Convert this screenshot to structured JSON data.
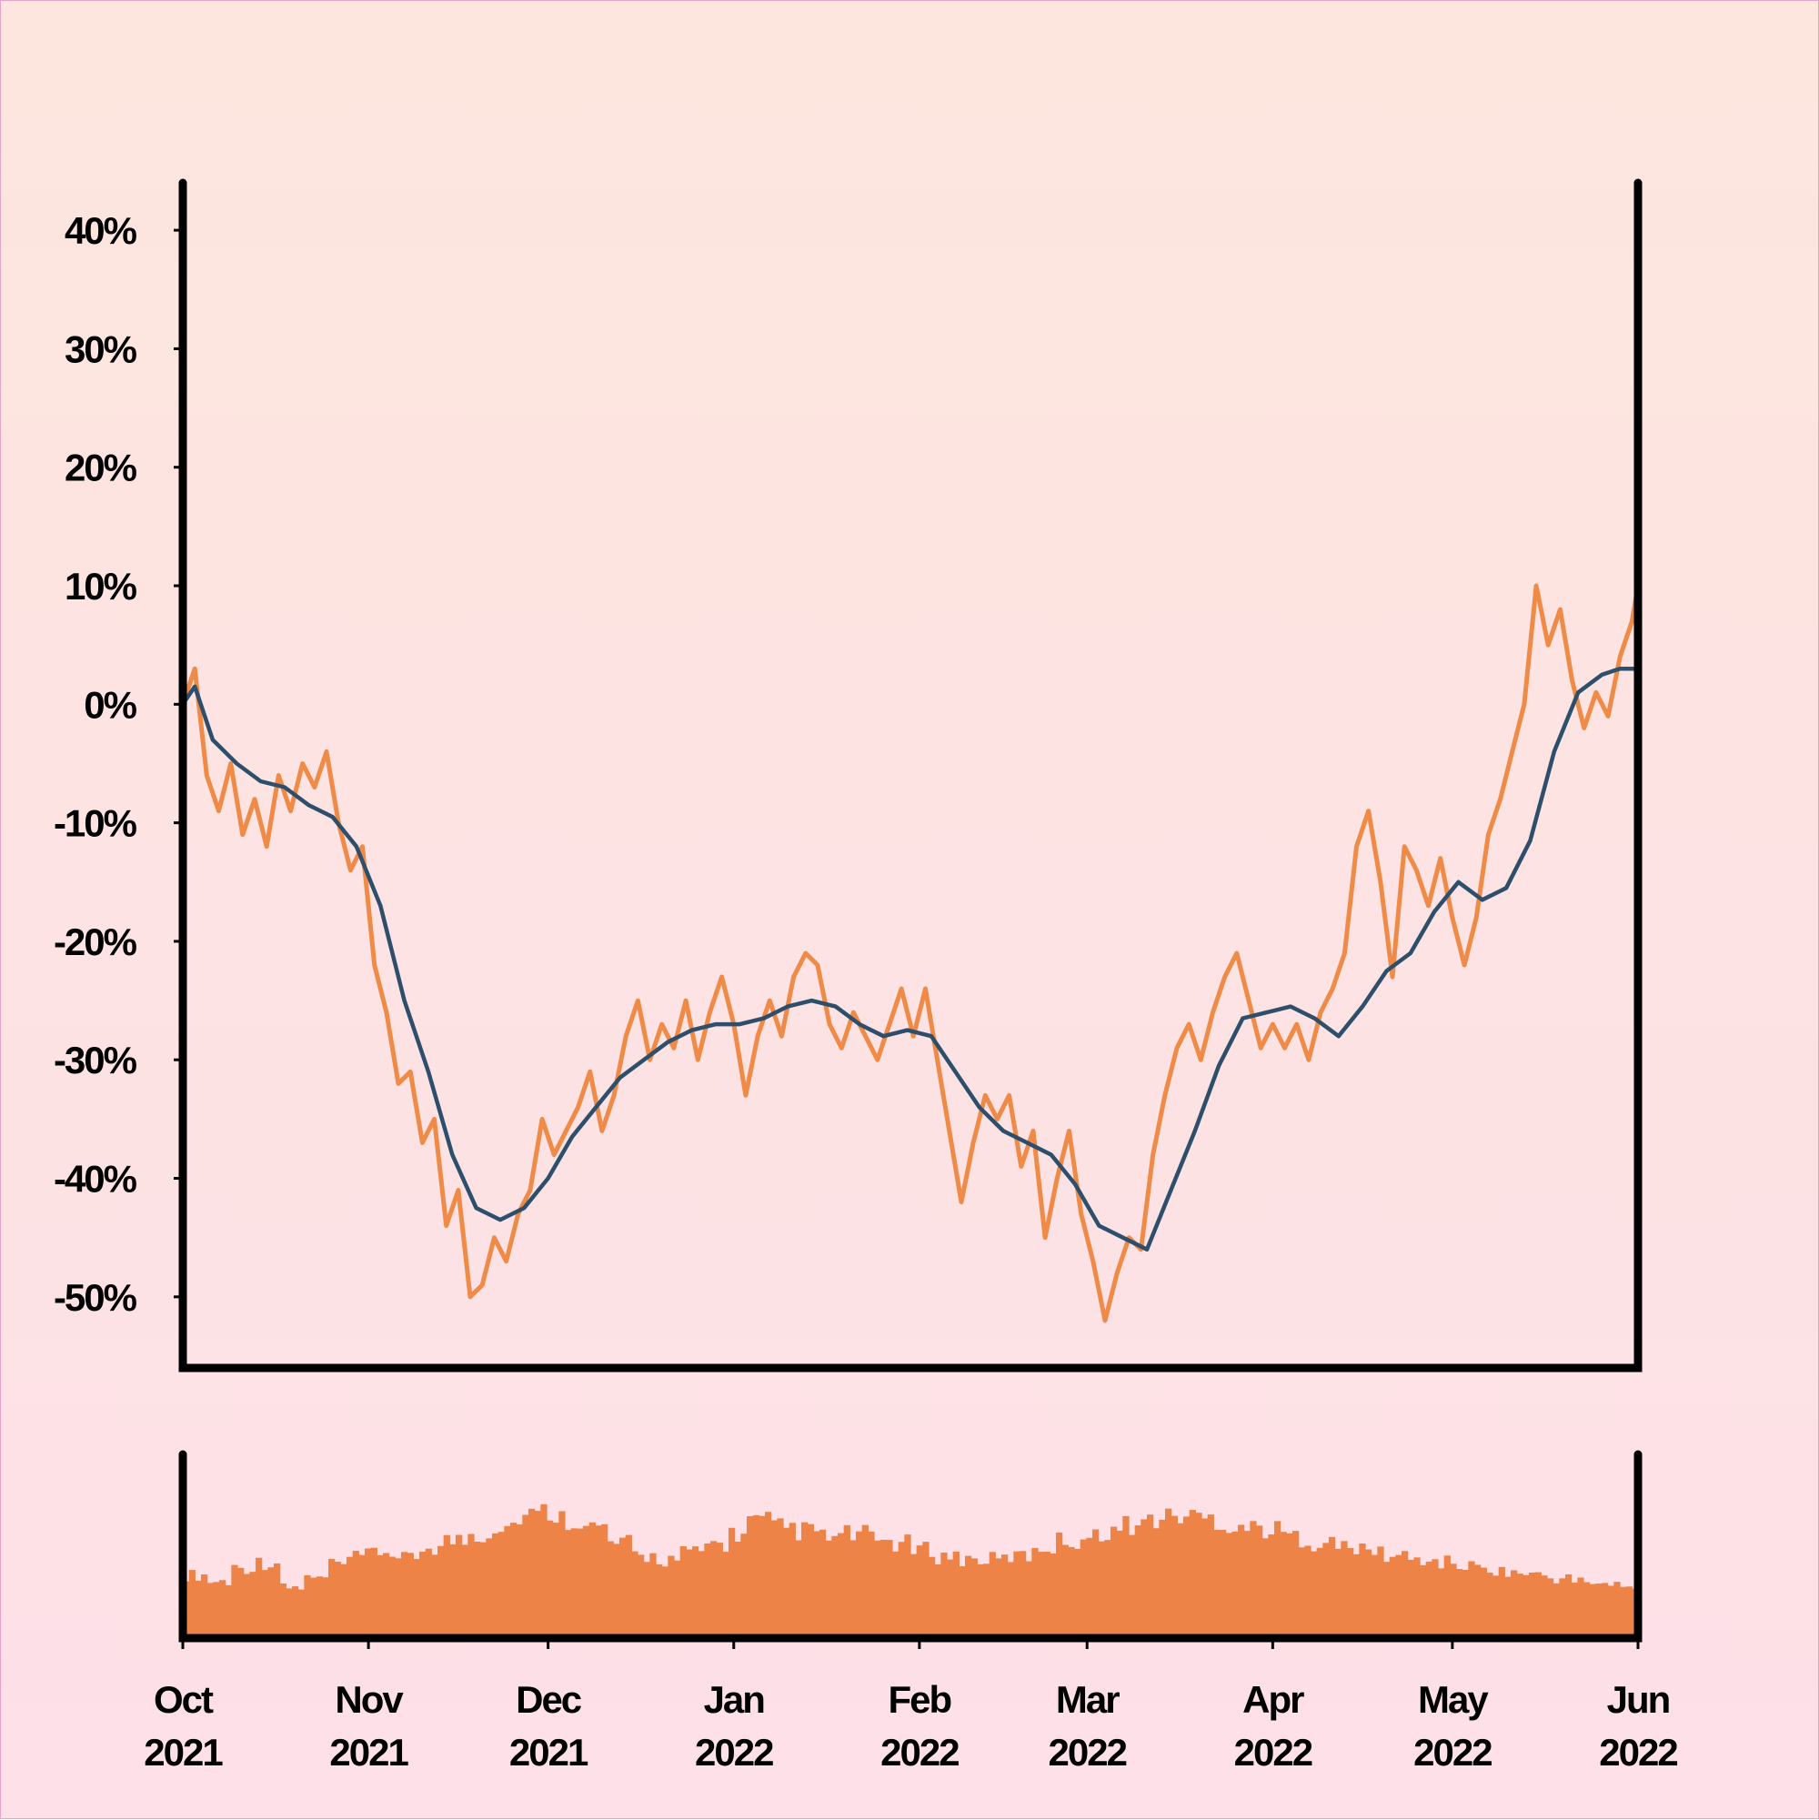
{
  "colors": {
    "price": "#ef8a47",
    "average": "#2d4f6b",
    "volume": "#ed8347",
    "background_top": "#fde6de",
    "background_bottom": "#fde0e8",
    "axis": "#000000"
  },
  "chart_data": {
    "type": "line",
    "title": "",
    "xlabel": "",
    "ylabel": "",
    "x_start": "2021-10-01",
    "x_end": "2022-06-01",
    "ylim": [
      -56,
      44
    ],
    "y_ticks": [
      "40%",
      "30%",
      "20%",
      "10%",
      "0%",
      "-10%",
      "-20%",
      "-30%",
      "-40%",
      "-50%"
    ],
    "y_tick_values": [
      40,
      30,
      20,
      10,
      0,
      -10,
      -20,
      -30,
      -40,
      -50
    ],
    "x_ticks": [
      {
        "date": "2021-10-01",
        "month": "Oct",
        "year": "2021"
      },
      {
        "date": "2021-11-01",
        "month": "Nov",
        "year": "2021"
      },
      {
        "date": "2021-12-01",
        "month": "Dec",
        "year": "2021"
      },
      {
        "date": "2022-01-01",
        "month": "Jan",
        "year": "2022"
      },
      {
        "date": "2022-02-01",
        "month": "Feb",
        "year": "2022"
      },
      {
        "date": "2022-03-01",
        "month": "Mar",
        "year": "2022"
      },
      {
        "date": "2022-04-01",
        "month": "Apr",
        "year": "2022"
      },
      {
        "date": "2022-05-01",
        "month": "May",
        "year": "2022"
      },
      {
        "date": "2022-06-01",
        "month": "Jun",
        "year": "2022"
      }
    ],
    "grid": false,
    "legend": "none",
    "series": [
      {
        "role": "price",
        "points": [
          [
            "2021-10-01",
            0
          ],
          [
            "2021-10-03",
            3
          ],
          [
            "2021-10-05",
            -6
          ],
          [
            "2021-10-07",
            -9
          ],
          [
            "2021-10-09",
            -5
          ],
          [
            "2021-10-11",
            -11
          ],
          [
            "2021-10-13",
            -8
          ],
          [
            "2021-10-15",
            -12
          ],
          [
            "2021-10-17",
            -6
          ],
          [
            "2021-10-19",
            -9
          ],
          [
            "2021-10-21",
            -5
          ],
          [
            "2021-10-23",
            -7
          ],
          [
            "2021-10-25",
            -4
          ],
          [
            "2021-10-27",
            -10
          ],
          [
            "2021-10-29",
            -14
          ],
          [
            "2021-10-31",
            -12
          ],
          [
            "2021-11-02",
            -22
          ],
          [
            "2021-11-04",
            -26
          ],
          [
            "2021-11-06",
            -32
          ],
          [
            "2021-11-08",
            -31
          ],
          [
            "2021-11-10",
            -37
          ],
          [
            "2021-11-12",
            -35
          ],
          [
            "2021-11-14",
            -44
          ],
          [
            "2021-11-16",
            -41
          ],
          [
            "2021-11-18",
            -50
          ],
          [
            "2021-11-20",
            -49
          ],
          [
            "2021-11-22",
            -45
          ],
          [
            "2021-11-24",
            -47
          ],
          [
            "2021-11-26",
            -43
          ],
          [
            "2021-11-28",
            -41
          ],
          [
            "2021-11-30",
            -35
          ],
          [
            "2021-12-02",
            -38
          ],
          [
            "2021-12-04",
            -36
          ],
          [
            "2021-12-06",
            -34
          ],
          [
            "2021-12-08",
            -31
          ],
          [
            "2021-12-10",
            -36
          ],
          [
            "2021-12-12",
            -33
          ],
          [
            "2021-12-14",
            -28
          ],
          [
            "2021-12-16",
            -25
          ],
          [
            "2021-12-18",
            -30
          ],
          [
            "2021-12-20",
            -27
          ],
          [
            "2021-12-22",
            -29
          ],
          [
            "2021-12-24",
            -25
          ],
          [
            "2021-12-26",
            -30
          ],
          [
            "2021-12-28",
            -26
          ],
          [
            "2021-12-30",
            -23
          ],
          [
            "2022-01-01",
            -27
          ],
          [
            "2022-01-03",
            -33
          ],
          [
            "2022-01-05",
            -28
          ],
          [
            "2022-01-07",
            -25
          ],
          [
            "2022-01-09",
            -28
          ],
          [
            "2022-01-11",
            -23
          ],
          [
            "2022-01-13",
            -21
          ],
          [
            "2022-01-15",
            -22
          ],
          [
            "2022-01-17",
            -27
          ],
          [
            "2022-01-19",
            -29
          ],
          [
            "2022-01-21",
            -26
          ],
          [
            "2022-01-23",
            -28
          ],
          [
            "2022-01-25",
            -30
          ],
          [
            "2022-01-27",
            -27
          ],
          [
            "2022-01-29",
            -24
          ],
          [
            "2022-01-31",
            -28
          ],
          [
            "2022-02-02",
            -24
          ],
          [
            "2022-02-04",
            -30
          ],
          [
            "2022-02-06",
            -36
          ],
          [
            "2022-02-08",
            -42
          ],
          [
            "2022-02-10",
            -37
          ],
          [
            "2022-02-12",
            -33
          ],
          [
            "2022-02-14",
            -35
          ],
          [
            "2022-02-16",
            -33
          ],
          [
            "2022-02-18",
            -39
          ],
          [
            "2022-02-20",
            -36
          ],
          [
            "2022-02-22",
            -45
          ],
          [
            "2022-02-24",
            -40
          ],
          [
            "2022-02-26",
            -36
          ],
          [
            "2022-02-28",
            -43
          ],
          [
            "2022-03-02",
            -47
          ],
          [
            "2022-03-04",
            -52
          ],
          [
            "2022-03-06",
            -48
          ],
          [
            "2022-03-08",
            -45
          ],
          [
            "2022-03-10",
            -46
          ],
          [
            "2022-03-12",
            -38
          ],
          [
            "2022-03-14",
            -33
          ],
          [
            "2022-03-16",
            -29
          ],
          [
            "2022-03-18",
            -27
          ],
          [
            "2022-03-20",
            -30
          ],
          [
            "2022-03-22",
            -26
          ],
          [
            "2022-03-24",
            -23
          ],
          [
            "2022-03-26",
            -21
          ],
          [
            "2022-03-28",
            -25
          ],
          [
            "2022-03-30",
            -29
          ],
          [
            "2022-04-01",
            -27
          ],
          [
            "2022-04-03",
            -29
          ],
          [
            "2022-04-05",
            -27
          ],
          [
            "2022-04-07",
            -30
          ],
          [
            "2022-04-09",
            -26
          ],
          [
            "2022-04-11",
            -24
          ],
          [
            "2022-04-13",
            -21
          ],
          [
            "2022-04-15",
            -12
          ],
          [
            "2022-04-17",
            -9
          ],
          [
            "2022-04-19",
            -15
          ],
          [
            "2022-04-21",
            -23
          ],
          [
            "2022-04-23",
            -12
          ],
          [
            "2022-04-25",
            -14
          ],
          [
            "2022-04-27",
            -17
          ],
          [
            "2022-04-29",
            -13
          ],
          [
            "2022-05-01",
            -18
          ],
          [
            "2022-05-03",
            -22
          ],
          [
            "2022-05-05",
            -18
          ],
          [
            "2022-05-07",
            -11
          ],
          [
            "2022-05-09",
            -8
          ],
          [
            "2022-05-11",
            -4
          ],
          [
            "2022-05-13",
            0
          ],
          [
            "2022-05-15",
            10
          ],
          [
            "2022-05-17",
            5
          ],
          [
            "2022-05-19",
            8
          ],
          [
            "2022-05-21",
            2
          ],
          [
            "2022-05-23",
            -2
          ],
          [
            "2022-05-25",
            1
          ],
          [
            "2022-05-27",
            -1
          ],
          [
            "2022-05-29",
            4
          ],
          [
            "2022-05-31",
            7
          ],
          [
            "2022-06-01",
            10
          ]
        ]
      },
      {
        "role": "moving-average",
        "points": [
          [
            "2021-10-01",
            0
          ],
          [
            "2021-10-03",
            1.5
          ],
          [
            "2021-10-06",
            -3
          ],
          [
            "2021-10-10",
            -5
          ],
          [
            "2021-10-14",
            -6.5
          ],
          [
            "2021-10-18",
            -7
          ],
          [
            "2021-10-22",
            -8.5
          ],
          [
            "2021-10-26",
            -9.5
          ],
          [
            "2021-10-30",
            -12
          ],
          [
            "2021-11-03",
            -17
          ],
          [
            "2021-11-07",
            -25
          ],
          [
            "2021-11-11",
            -31
          ],
          [
            "2021-11-15",
            -38
          ],
          [
            "2021-11-19",
            -42.5
          ],
          [
            "2021-11-23",
            -43.5
          ],
          [
            "2021-11-27",
            -42.5
          ],
          [
            "2021-12-01",
            -40
          ],
          [
            "2021-12-05",
            -36.5
          ],
          [
            "2021-12-09",
            -34
          ],
          [
            "2021-12-13",
            -31.5
          ],
          [
            "2021-12-17",
            -30
          ],
          [
            "2021-12-21",
            -28.5
          ],
          [
            "2021-12-25",
            -27.5
          ],
          [
            "2021-12-29",
            -27
          ],
          [
            "2022-01-02",
            -27
          ],
          [
            "2022-01-06",
            -26.5
          ],
          [
            "2022-01-10",
            -25.5
          ],
          [
            "2022-01-14",
            -25
          ],
          [
            "2022-01-18",
            -25.5
          ],
          [
            "2022-01-22",
            -27
          ],
          [
            "2022-01-26",
            -28
          ],
          [
            "2022-01-30",
            -27.5
          ],
          [
            "2022-02-03",
            -28
          ],
          [
            "2022-02-07",
            -31
          ],
          [
            "2022-02-11",
            -34
          ],
          [
            "2022-02-15",
            -36
          ],
          [
            "2022-02-19",
            -37
          ],
          [
            "2022-02-23",
            -38
          ],
          [
            "2022-02-27",
            -40.5
          ],
          [
            "2022-03-03",
            -44
          ],
          [
            "2022-03-07",
            -45
          ],
          [
            "2022-03-11",
            -46
          ],
          [
            "2022-03-15",
            -41
          ],
          [
            "2022-03-19",
            -36
          ],
          [
            "2022-03-23",
            -30.5
          ],
          [
            "2022-03-27",
            -26.5
          ],
          [
            "2022-03-31",
            -26
          ],
          [
            "2022-04-04",
            -25.5
          ],
          [
            "2022-04-08",
            -26.5
          ],
          [
            "2022-04-12",
            -28
          ],
          [
            "2022-04-16",
            -25.5
          ],
          [
            "2022-04-20",
            -22.5
          ],
          [
            "2022-04-24",
            -21
          ],
          [
            "2022-04-28",
            -17.5
          ],
          [
            "2022-05-02",
            -15
          ],
          [
            "2022-05-06",
            -16.5
          ],
          [
            "2022-05-10",
            -15.5
          ],
          [
            "2022-05-14",
            -11.5
          ],
          [
            "2022-05-18",
            -4
          ],
          [
            "2022-05-22",
            1
          ],
          [
            "2022-05-26",
            2.5
          ],
          [
            "2022-05-29",
            3
          ],
          [
            "2022-06-01",
            3
          ]
        ]
      }
    ],
    "volume": {
      "ylim": [
        0,
        1
      ],
      "count": 240,
      "values": [
        0.4,
        0.36,
        0.45,
        0.48,
        0.32,
        0.38,
        0.47,
        0.52,
        0.55,
        0.5,
        0.58,
        0.62,
        0.66,
        0.72,
        0.78,
        0.8,
        0.76,
        0.7,
        0.6,
        0.52,
        0.5,
        0.54,
        0.6,
        0.66,
        0.74,
        0.7,
        0.68,
        0.64,
        0.66,
        0.62,
        0.6,
        0.56,
        0.52,
        0.5,
        0.5,
        0.52,
        0.58,
        0.62,
        0.64,
        0.68,
        0.72,
        0.76,
        0.78,
        0.76,
        0.72,
        0.7,
        0.68,
        0.64,
        0.6,
        0.58,
        0.55,
        0.52,
        0.5,
        0.48,
        0.46,
        0.44,
        0.42,
        0.4,
        0.38,
        0.36,
        0.34,
        0.32
      ]
    }
  }
}
